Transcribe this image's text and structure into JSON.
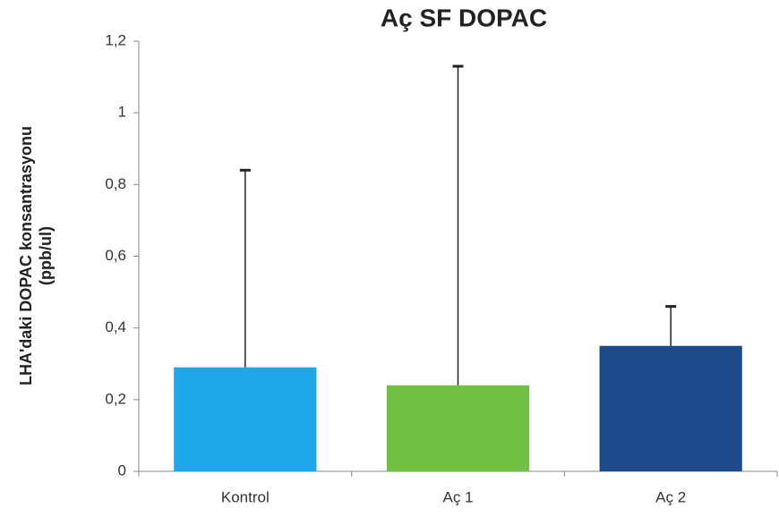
{
  "chart_data": {
    "type": "bar",
    "title": "Aç SF DOPAC",
    "ylabel": [
      "LHA'daki DOPAC konsantrasyonu",
      "(ppb/ul)"
    ],
    "categories": [
      "Kontrol",
      "Aç 1",
      "Aç 2"
    ],
    "values": [
      0.29,
      0.24,
      0.35
    ],
    "errors": [
      0.55,
      0.89,
      0.11
    ],
    "colors": [
      "#1ea7e8",
      "#72c145",
      "#1e4a8c"
    ],
    "ylim": [
      0,
      1.2
    ],
    "yticks": [
      0,
      {
        "value": 0.2,
        "label": "0,2"
      },
      {
        "value": 0.4,
        "label": "0,4"
      },
      {
        "value": 0.6,
        "label": "0,6"
      },
      {
        "value": 0.8,
        "label": "0,8"
      },
      1,
      {
        "value": 1.2,
        "label": "1,2"
      }
    ]
  }
}
